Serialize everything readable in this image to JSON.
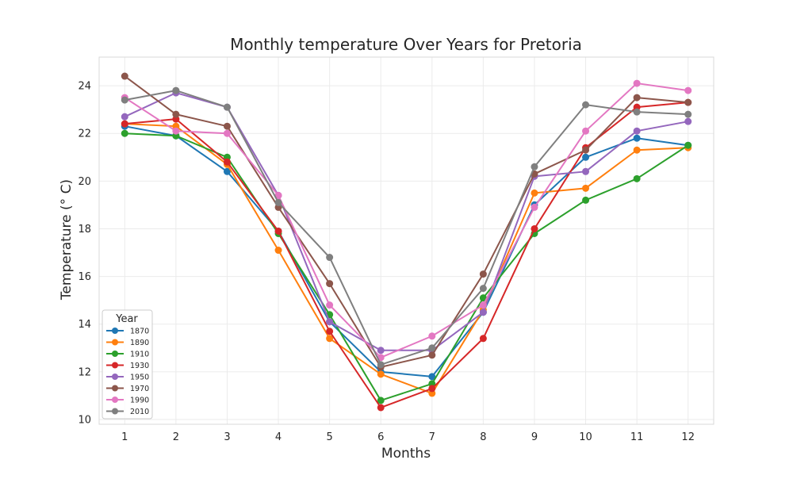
{
  "chart_data": {
    "type": "line",
    "title": "Monthly temperature Over Years for Pretoria",
    "xlabel": "Months",
    "ylabel": "Temperature (° C)",
    "x": [
      1,
      2,
      3,
      4,
      5,
      6,
      7,
      8,
      9,
      10,
      11,
      12
    ],
    "xlim": [
      0.5,
      12.5
    ],
    "ylim": [
      9.8,
      25.2
    ],
    "yticks": [
      10,
      12,
      14,
      16,
      18,
      20,
      22,
      24
    ],
    "grid": true,
    "legend": {
      "title": "Year",
      "placement": "lower-left"
    },
    "series": [
      {
        "name": "1870",
        "color": "#1f77b4",
        "values": [
          22.3,
          21.9,
          20.4,
          17.9,
          14.1,
          12.0,
          11.8,
          14.5,
          19.0,
          21.0,
          21.8,
          21.5
        ]
      },
      {
        "name": "1890",
        "color": "#ff7f0e",
        "values": [
          22.4,
          22.3,
          20.7,
          17.1,
          13.4,
          11.9,
          11.1,
          14.6,
          19.5,
          19.7,
          21.3,
          21.4
        ]
      },
      {
        "name": "1910",
        "color": "#2ca02c",
        "values": [
          22.0,
          21.9,
          21.0,
          17.8,
          14.4,
          10.8,
          11.5,
          15.1,
          17.8,
          19.2,
          20.1,
          21.5
        ]
      },
      {
        "name": "1930",
        "color": "#d62728",
        "values": [
          22.4,
          22.6,
          20.8,
          17.9,
          13.7,
          10.5,
          11.3,
          13.4,
          18.0,
          21.4,
          23.1,
          23.3
        ]
      },
      {
        "name": "1950",
        "color": "#9467bd",
        "values": [
          22.7,
          23.7,
          23.1,
          19.4,
          14.1,
          12.9,
          12.9,
          14.5,
          20.2,
          20.4,
          22.1,
          22.5
        ]
      },
      {
        "name": "1970",
        "color": "#8c564b",
        "values": [
          24.4,
          22.8,
          22.3,
          18.9,
          15.7,
          12.2,
          12.7,
          16.1,
          20.3,
          21.3,
          23.5,
          23.3
        ]
      },
      {
        "name": "1990",
        "color": "#e377c2",
        "values": [
          23.5,
          22.1,
          22.0,
          19.4,
          14.8,
          12.6,
          13.5,
          14.8,
          18.9,
          22.1,
          24.1,
          23.8
        ]
      },
      {
        "name": "2010",
        "color": "#7f7f7f",
        "values": [
          23.4,
          23.8,
          23.1,
          19.1,
          16.8,
          12.3,
          13.0,
          15.5,
          20.6,
          23.2,
          22.9,
          22.8
        ]
      }
    ]
  }
}
